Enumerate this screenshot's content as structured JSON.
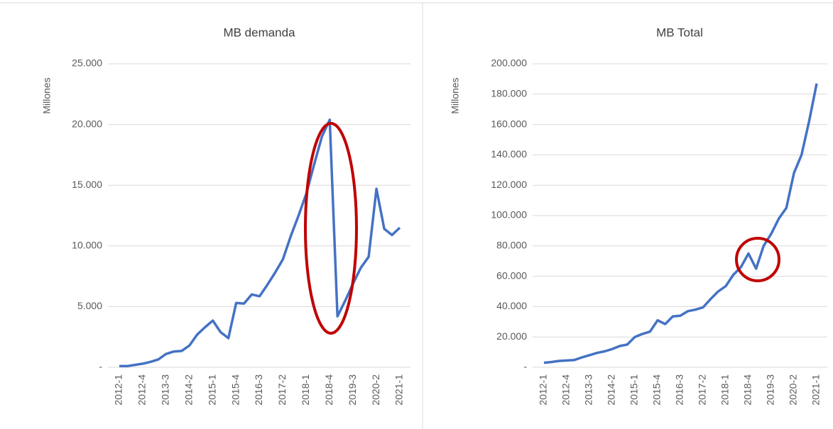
{
  "chart_data": [
    {
      "type": "line",
      "title": "MB demanda",
      "y_label": "Millones",
      "categories": [
        "2012-1",
        null,
        null,
        "2012-4",
        null,
        null,
        "2013-3",
        null,
        null,
        "2014-2",
        null,
        null,
        "2015-1",
        null,
        null,
        "2015-4",
        null,
        null,
        "2016-3",
        null,
        null,
        "2017-2",
        null,
        null,
        "2018-1",
        null,
        null,
        "2018-4",
        null,
        null,
        "2019-3",
        null,
        null,
        "2020-2",
        null,
        null,
        "2021-1"
      ],
      "series": [
        {
          "name": "MB demanda",
          "color": "#4472c4",
          "values": [
            100,
            100,
            200,
            300,
            450,
            650,
            1100,
            1300,
            1350,
            1800,
            2700,
            3300,
            3850,
            2900,
            2400,
            5300,
            5250,
            6000,
            5850,
            6800,
            7800,
            8900,
            10800,
            12500,
            14300,
            16700,
            19000,
            20400,
            4200,
            5500,
            6900,
            8200,
            9100,
            14700,
            11400,
            10900,
            11500
          ]
        }
      ],
      "ylim": [
        0,
        25000
      ],
      "yticks": [
        {
          "value": 0,
          "label": "-"
        },
        {
          "value": 5000,
          "label": "5.000"
        },
        {
          "value": 10000,
          "label": "10.000"
        },
        {
          "value": 15000,
          "label": "15.000"
        },
        {
          "value": 20000,
          "label": "20.000"
        },
        {
          "value": 25000,
          "label": "25.000"
        }
      ],
      "grid": true
    },
    {
      "type": "line",
      "title": "MB Total",
      "y_label": "Millones",
      "categories": [
        "2012-1",
        null,
        null,
        "2012-4",
        null,
        null,
        "2013-3",
        null,
        null,
        "2014-2",
        null,
        null,
        "2015-1",
        null,
        null,
        "2015-4",
        null,
        null,
        "2016-3",
        null,
        null,
        "2017-2",
        null,
        null,
        "2018-1",
        null,
        null,
        "2018-4",
        null,
        null,
        "2019-3",
        null,
        null,
        "2020-2",
        null,
        null,
        "2021-1"
      ],
      "series": [
        {
          "name": "MB Total",
          "color": "#4472c4",
          "values": [
            3000,
            3500,
            4200,
            4500,
            4800,
            6500,
            8000,
            9500,
            10500,
            12000,
            14000,
            15000,
            20000,
            22000,
            23500,
            31000,
            28500,
            33500,
            34000,
            37000,
            38000,
            39500,
            45000,
            50000,
            53500,
            61000,
            66000,
            75000,
            65000,
            80000,
            88000,
            98000,
            105000,
            128000,
            140000,
            162000,
            187000
          ]
        }
      ],
      "ylim": [
        0,
        200000
      ],
      "yticks": [
        {
          "value": 0,
          "label": "-"
        },
        {
          "value": 20000,
          "label": "20.000"
        },
        {
          "value": 40000,
          "label": "40.000"
        },
        {
          "value": 60000,
          "label": "60.000"
        },
        {
          "value": 80000,
          "label": "80.000"
        },
        {
          "value": 100000,
          "label": "100.000"
        },
        {
          "value": 120000,
          "label": "120.000"
        },
        {
          "value": 140000,
          "label": "140.000"
        },
        {
          "value": 160000,
          "label": "160.000"
        },
        {
          "value": 180000,
          "label": "180.000"
        },
        {
          "value": 200000,
          "label": "200.000"
        }
      ],
      "grid": true
    }
  ]
}
